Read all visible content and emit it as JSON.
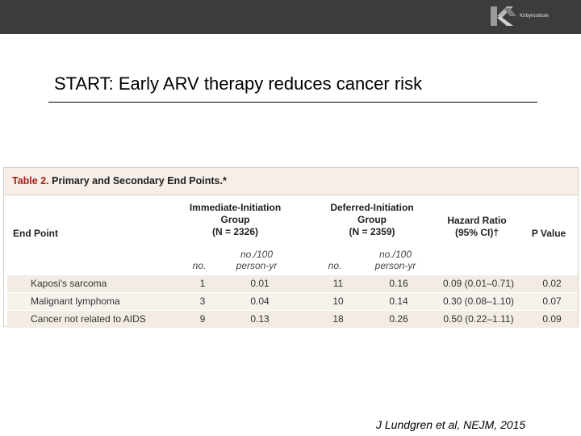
{
  "header": {
    "logo_text": "KirbyInstitute"
  },
  "slide": {
    "title": "START: Early ARV therapy reduces cancer risk",
    "citation": "J Lundgren et al, NEJM, 2015"
  },
  "table": {
    "caption_number": "Table 2.",
    "caption_name": "Primary and Secondary End Points.*",
    "headers": {
      "end_point": "End Point",
      "immediate": [
        "Immediate-Initiation",
        "Group",
        "(N = 2326)"
      ],
      "deferred": [
        "Deferred-Initiation",
        "Group",
        "(N = 2359)"
      ],
      "hazard_ratio": [
        "Hazard Ratio",
        "(95% CI)†"
      ],
      "p_value": "P Value"
    },
    "subheaders": {
      "imm_no": "no.",
      "imm_rate": [
        "no./100",
        "person-yr"
      ],
      "def_no": "no.",
      "def_rate": [
        "no./100",
        "person-yr"
      ]
    },
    "rows": [
      {
        "end_point": "Kaposi's sarcoma",
        "imm_no": "1",
        "imm_rate": "0.01",
        "def_no": "11",
        "def_rate": "0.16",
        "hr": "0.09 (0.01–0.71)",
        "p": "0.02"
      },
      {
        "end_point": "Malignant lymphoma",
        "imm_no": "3",
        "imm_rate": "0.04",
        "def_no": "10",
        "def_rate": "0.14",
        "hr": "0.30 (0.08–1.10)",
        "p": "0.07"
      },
      {
        "end_point": "Cancer not related to AIDS",
        "imm_no": "9",
        "imm_rate": "0.13",
        "def_no": "18",
        "def_rate": "0.26",
        "hr": "0.50 (0.22–1.11)",
        "p": "0.09"
      }
    ]
  },
  "colors": {
    "topbar": "#3c3c3c",
    "table_number": "#a0211c",
    "table_header_bg": "#f6eee7",
    "row_bg": "#f2ece4"
  }
}
